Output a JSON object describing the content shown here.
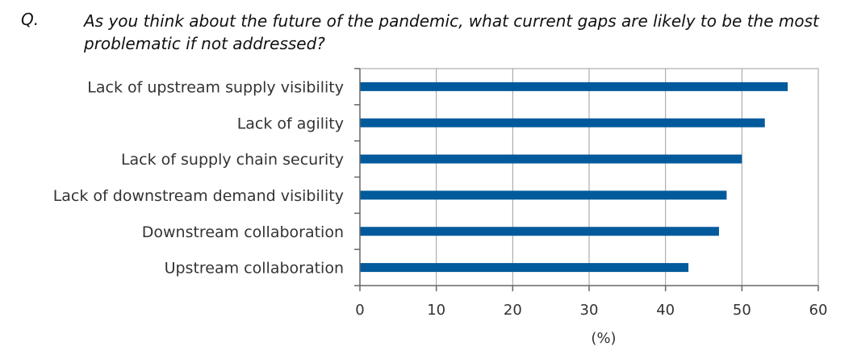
{
  "question": {
    "label": "Q.",
    "text": "As you think about the future of the pandemic, what current gaps are likely to be the most problematic if not addressed?"
  },
  "colors": {
    "bar": "#005a9c",
    "grid": "#9e9e9e",
    "axis": "#666666"
  },
  "chart_data": {
    "type": "bar",
    "orientation": "horizontal",
    "categories": [
      "Lack of upstream supply visibility",
      "Lack of agility",
      "Lack of supply chain security",
      "Lack of downstream demand visibility",
      "Downstream collaboration",
      "Upstream collaboration"
    ],
    "values": [
      56,
      53,
      50,
      48,
      47,
      43
    ],
    "xlim": [
      0,
      60
    ],
    "xticks": [
      0,
      10,
      20,
      30,
      40,
      50,
      60
    ],
    "xlabel": "(%)",
    "grid": true
  }
}
